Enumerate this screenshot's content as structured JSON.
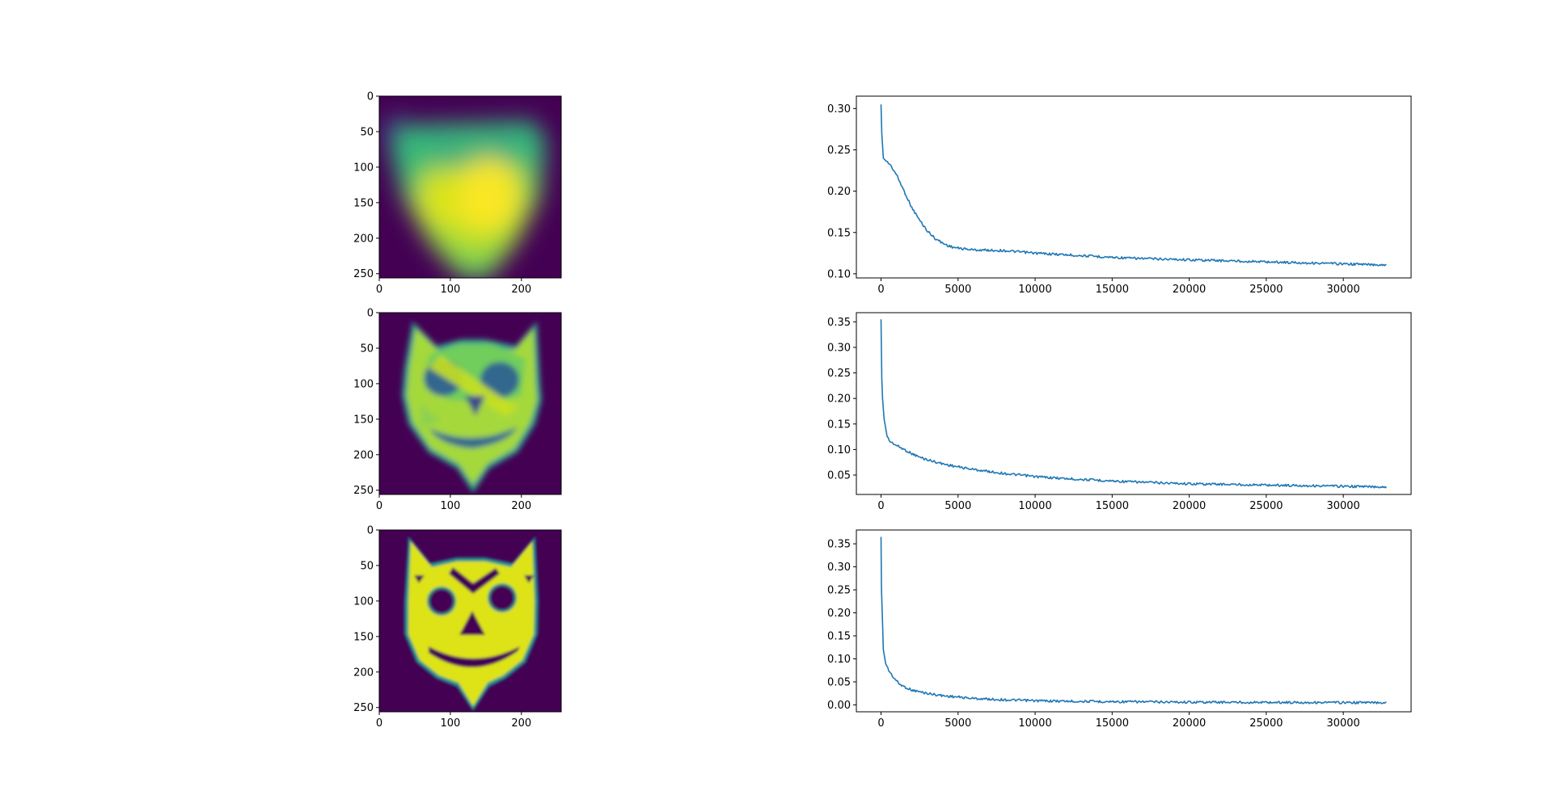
{
  "figure": {
    "background": "#ffffff",
    "line_color": "#1f77b4",
    "colormap": "viridis",
    "panel_bg": "#440154",
    "face_colors": {
      "fill_bright": "#dde318",
      "fill_green": "#8fd14f",
      "mid_teal": "#21918c",
      "dark_blue": "#31688e"
    }
  },
  "chart_data": [
    {
      "type": "heatmap",
      "panel": "image-row-1",
      "xticks": [
        0,
        100,
        200
      ],
      "yticks": [
        0,
        50,
        100,
        150,
        200,
        250
      ],
      "xlim": [
        0,
        256
      ],
      "ylim": [
        256,
        0
      ],
      "description_values": "blurred shield-shaped viridis field, brightest yellow in lower-center region"
    },
    {
      "type": "line",
      "panel": "loss-row-1",
      "xticks": [
        0,
        5000,
        10000,
        15000,
        20000,
        25000,
        30000
      ],
      "yticks": [
        0.1,
        0.15,
        0.2,
        0.25,
        0.3
      ],
      "xlim": [
        -1600,
        34400
      ],
      "ylim": [
        0.095,
        0.315
      ],
      "series": [
        {
          "x": [
            0,
            50,
            150,
            300,
            600,
            1000,
            1500,
            2000,
            2500,
            3000,
            3500,
            4000,
            4500,
            5000,
            6000,
            8000,
            10000,
            12000,
            14000,
            16000,
            18000,
            20000,
            22000,
            24000,
            26000,
            28000,
            30000,
            32000,
            32800
          ],
          "y": [
            0.305,
            0.27,
            0.24,
            0.237,
            0.232,
            0.22,
            0.2,
            0.18,
            0.165,
            0.152,
            0.143,
            0.137,
            0.133,
            0.131,
            0.129,
            0.128,
            0.125,
            0.123,
            0.121,
            0.119,
            0.118,
            0.117,
            0.116,
            0.115,
            0.114,
            0.113,
            0.112,
            0.111,
            0.111
          ]
        }
      ]
    },
    {
      "type": "heatmap",
      "panel": "image-row-2",
      "xticks": [
        0,
        100,
        200
      ],
      "yticks": [
        0,
        50,
        100,
        150,
        200,
        250
      ],
      "xlim": [
        0,
        256
      ],
      "ylim": [
        256,
        0
      ],
      "description_values": "cat-face silhouette with partially formed features, mostly green-yellow interior"
    },
    {
      "type": "line",
      "panel": "loss-row-2",
      "xticks": [
        0,
        5000,
        10000,
        15000,
        20000,
        25000,
        30000
      ],
      "yticks": [
        0.05,
        0.1,
        0.15,
        0.2,
        0.25,
        0.3,
        0.35
      ],
      "xlim": [
        -1600,
        34400
      ],
      "ylim": [
        0.012,
        0.368
      ],
      "series": [
        {
          "x": [
            0,
            50,
            100,
            200,
            400,
            600,
            800,
            1000,
            1500,
            2000,
            2500,
            3000,
            4000,
            5000,
            6000,
            8000,
            10000,
            12000,
            14000,
            16000,
            18000,
            20000,
            22000,
            24000,
            26000,
            28000,
            30000,
            32000,
            32800
          ],
          "y": [
            0.355,
            0.24,
            0.2,
            0.16,
            0.125,
            0.115,
            0.112,
            0.108,
            0.1,
            0.092,
            0.085,
            0.08,
            0.072,
            0.066,
            0.061,
            0.053,
            0.047,
            0.043,
            0.04,
            0.037,
            0.035,
            0.033,
            0.032,
            0.031,
            0.03,
            0.029,
            0.028,
            0.027,
            0.027
          ]
        }
      ]
    },
    {
      "type": "heatmap",
      "panel": "image-row-3",
      "xticks": [
        0,
        100,
        200
      ],
      "yticks": [
        0,
        50,
        100,
        150,
        200,
        250
      ],
      "xlim": [
        0,
        256
      ],
      "ylim": [
        256,
        0
      ],
      "description_values": "sharp yellow cat-face with round eyes, triangular nose and smiling mouth"
    },
    {
      "type": "line",
      "panel": "loss-row-3",
      "xticks": [
        0,
        5000,
        10000,
        15000,
        20000,
        25000,
        30000
      ],
      "yticks": [
        0.0,
        0.05,
        0.1,
        0.15,
        0.2,
        0.25,
        0.3,
        0.35
      ],
      "xlim": [
        -1600,
        34400
      ],
      "ylim": [
        -0.015,
        0.38
      ],
      "series": [
        {
          "x": [
            0,
            30,
            80,
            150,
            300,
            500,
            800,
            1200,
            1600,
            2000,
            3000,
            4000,
            5000,
            6000,
            8000,
            10000,
            12000,
            15000,
            18000,
            20000,
            25000,
            30000,
            32800
          ],
          "y": [
            0.365,
            0.25,
            0.2,
            0.12,
            0.09,
            0.075,
            0.06,
            0.045,
            0.038,
            0.032,
            0.025,
            0.02,
            0.017,
            0.014,
            0.011,
            0.009,
            0.008,
            0.007,
            0.0065,
            0.006,
            0.0055,
            0.005,
            0.005
          ]
        }
      ]
    }
  ]
}
